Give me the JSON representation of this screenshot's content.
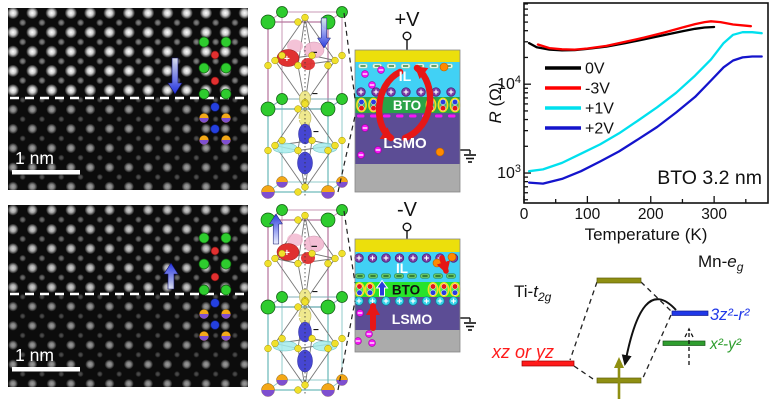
{
  "stem_top": {
    "scale_label": "1 nm",
    "arrow_direction": "down"
  },
  "stem_bottom": {
    "scale_label": "1 nm",
    "arrow_direction": "up"
  },
  "crystal_top": {
    "polarization_arrow": "down"
  },
  "crystal_bottom": {
    "polarization_arrow": "up"
  },
  "schematic_plus": {
    "voltage_label": "+V",
    "il_label": "IL",
    "bto_label": "BTO",
    "lsmo_label": "LSMO"
  },
  "schematic_minus": {
    "voltage_label": "-V",
    "il_label": "IL",
    "bto_label": "BTO",
    "lsmo_label": "LSMO"
  },
  "chart_data": {
    "type": "line",
    "xlabel": "Temperature (K)",
    "ylabel": "R (Ω)",
    "ylabel_main": "R",
    "ylabel_unit": " (Ω)",
    "annotation": "BTO 3.2 nm",
    "x_range": [
      0,
      385
    ],
    "x_major_ticks": [
      0,
      100,
      200,
      300
    ],
    "x_minor_step": 50,
    "y_scale": "log",
    "y_range": [
      460,
      82000
    ],
    "y_major_ticks_exponents": [
      3,
      4
    ],
    "grid": false,
    "legend_position": "upper-left-inside",
    "series": [
      {
        "name": "0V",
        "color": "#000000",
        "points": [
          [
            8,
            29000
          ],
          [
            20,
            26000
          ],
          [
            40,
            24500
          ],
          [
            60,
            24000
          ],
          [
            80,
            24200
          ],
          [
            100,
            25000
          ],
          [
            130,
            26500
          ],
          [
            160,
            29000
          ],
          [
            190,
            32000
          ],
          [
            220,
            35500
          ],
          [
            250,
            39500
          ],
          [
            270,
            42000
          ],
          [
            285,
            43500
          ],
          [
            300,
            44000
          ]
        ]
      },
      {
        "name": "-3V",
        "color": "#ff0000",
        "points": [
          [
            22,
            28000
          ],
          [
            40,
            25500
          ],
          [
            60,
            24700
          ],
          [
            80,
            24500
          ],
          [
            100,
            25200
          ],
          [
            130,
            27000
          ],
          [
            160,
            30000
          ],
          [
            190,
            33500
          ],
          [
            220,
            38000
          ],
          [
            250,
            43500
          ],
          [
            270,
            47500
          ],
          [
            285,
            50000
          ],
          [
            295,
            51000
          ],
          [
            310,
            50000
          ],
          [
            330,
            47000
          ],
          [
            350,
            45500
          ],
          [
            358,
            45000
          ]
        ]
      },
      {
        "name": "+1V",
        "color": "#00e0ee",
        "points": [
          [
            8,
            1050
          ],
          [
            30,
            1100
          ],
          [
            60,
            1300
          ],
          [
            90,
            1650
          ],
          [
            120,
            2100
          ],
          [
            150,
            2800
          ],
          [
            180,
            3900
          ],
          [
            210,
            5500
          ],
          [
            240,
            8000
          ],
          [
            270,
            12500
          ],
          [
            295,
            19000
          ],
          [
            315,
            29000
          ],
          [
            330,
            36000
          ],
          [
            345,
            38500
          ],
          [
            360,
            38500
          ],
          [
            375,
            37500
          ]
        ]
      },
      {
        "name": "+2V",
        "color": "#1414cc",
        "points": [
          [
            8,
            780
          ],
          [
            30,
            760
          ],
          [
            60,
            860
          ],
          [
            90,
            1050
          ],
          [
            120,
            1350
          ],
          [
            150,
            1750
          ],
          [
            180,
            2400
          ],
          [
            210,
            3300
          ],
          [
            240,
            4800
          ],
          [
            270,
            7200
          ],
          [
            295,
            11000
          ],
          [
            315,
            15500
          ],
          [
            330,
            18500
          ],
          [
            345,
            20000
          ],
          [
            360,
            20500
          ],
          [
            375,
            20500
          ]
        ]
      }
    ]
  },
  "energy": {
    "ti_label": {
      "prefix": "Ti-",
      "var": "t",
      "sub": "2g"
    },
    "mn_label": {
      "prefix": "Mn-",
      "var": "e",
      "sub": "g"
    },
    "levels": {
      "red_label": "xz or yz",
      "blue_label": "3z²-r²",
      "green_label": "x²-y²"
    },
    "colors": {
      "olive": "#8f8f12",
      "red": "#ff1a1a",
      "blue": "#2038e8",
      "green": "#2f9e2f"
    }
  },
  "colors": {
    "electrode_yellow": "#ecdf0c",
    "il_cyan": "#41d1f5",
    "bto_green_plus": "#2aa347",
    "bto_green_minus": "#27e32b",
    "lsmo_purple": "#5c4d95",
    "substrate_gray": "#ababab",
    "ion_minus_magenta": "#f616f6",
    "cation_purple": "#7a3ba6",
    "cation_cyan": "#35d3e9",
    "anion_green": "#6fcf6f",
    "orange_ion": "#ff8a00",
    "arrow_red": "#e61717",
    "polar_arrow_blue": "#2a3bdd",
    "crystal": {
      "ba_green": "#2ecc2e",
      "o_yellow": "#f0e02a",
      "orbital_red": "#e03030",
      "orbital_pink": "#f2b8d0",
      "orbital_yellow": "#efe98e",
      "orbital_blue": "#4646d2",
      "orbital_cyan": "#a5ecec",
      "lasr_orange": "#f3a818",
      "lasr_purple": "#7e4fd0",
      "frame_top": "#b5729b",
      "frame_bottom": "#68b8b8"
    }
  }
}
